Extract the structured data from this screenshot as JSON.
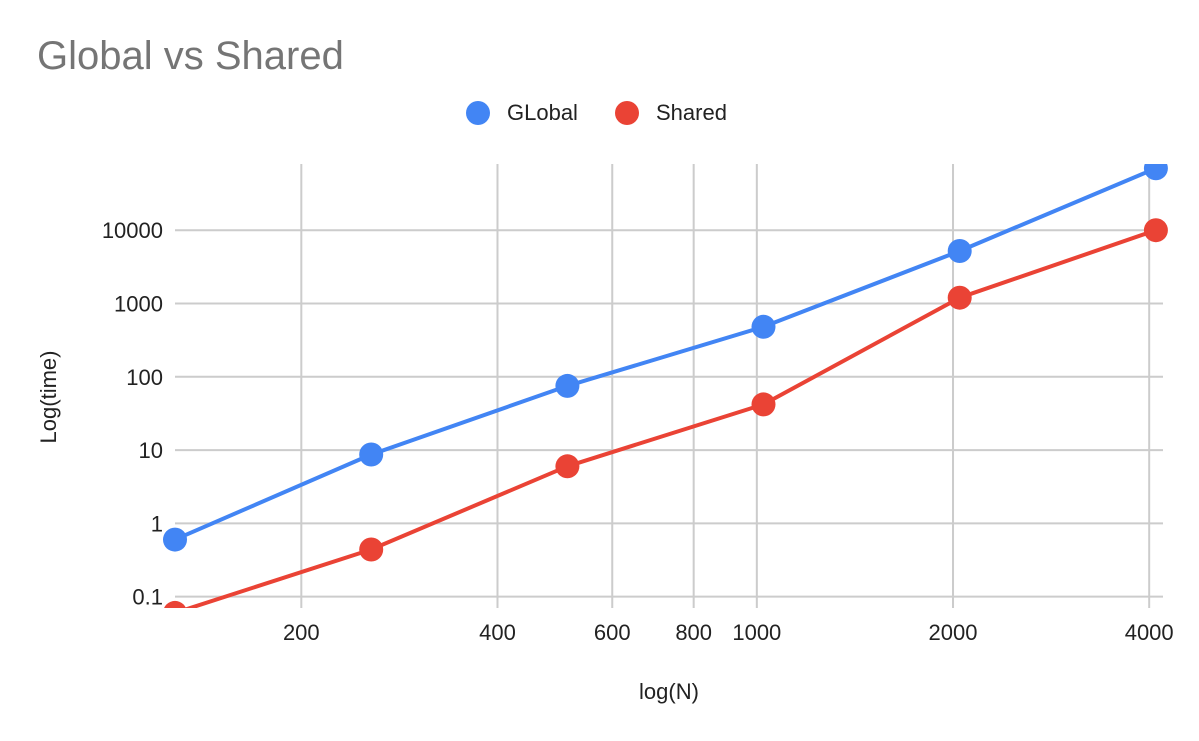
{
  "chart_data": {
    "type": "line",
    "title": "Global vs Shared",
    "xlabel": "log(N)",
    "ylabel": "Log(time)",
    "x_scale": "log",
    "y_scale": "log",
    "xlim": [
      128,
      4200
    ],
    "ylim": [
      0.07,
      80000
    ],
    "x": [
      128,
      256,
      512,
      1024,
      2048,
      4096
    ],
    "x_ticks": [
      200,
      400,
      600,
      800,
      1000,
      2000,
      4000
    ],
    "x_tick_labels": [
      "200",
      "400",
      "600",
      "800",
      "1000",
      "2000",
      "4000"
    ],
    "y_ticks": [
      0.1,
      1,
      10,
      100,
      1000,
      10000
    ],
    "y_tick_labels": [
      "0.1",
      "1",
      "10",
      "100",
      "1000",
      "10000"
    ],
    "grid": true,
    "legend_position": "top",
    "series": [
      {
        "name": "GLobal",
        "color": "#4285f4",
        "values": [
          0.6,
          8.7,
          75,
          480,
          5200,
          70000
        ]
      },
      {
        "name": "Shared",
        "color": "#ea4335",
        "values": [
          0.06,
          0.44,
          6,
          42,
          1200,
          10000
        ]
      }
    ]
  }
}
